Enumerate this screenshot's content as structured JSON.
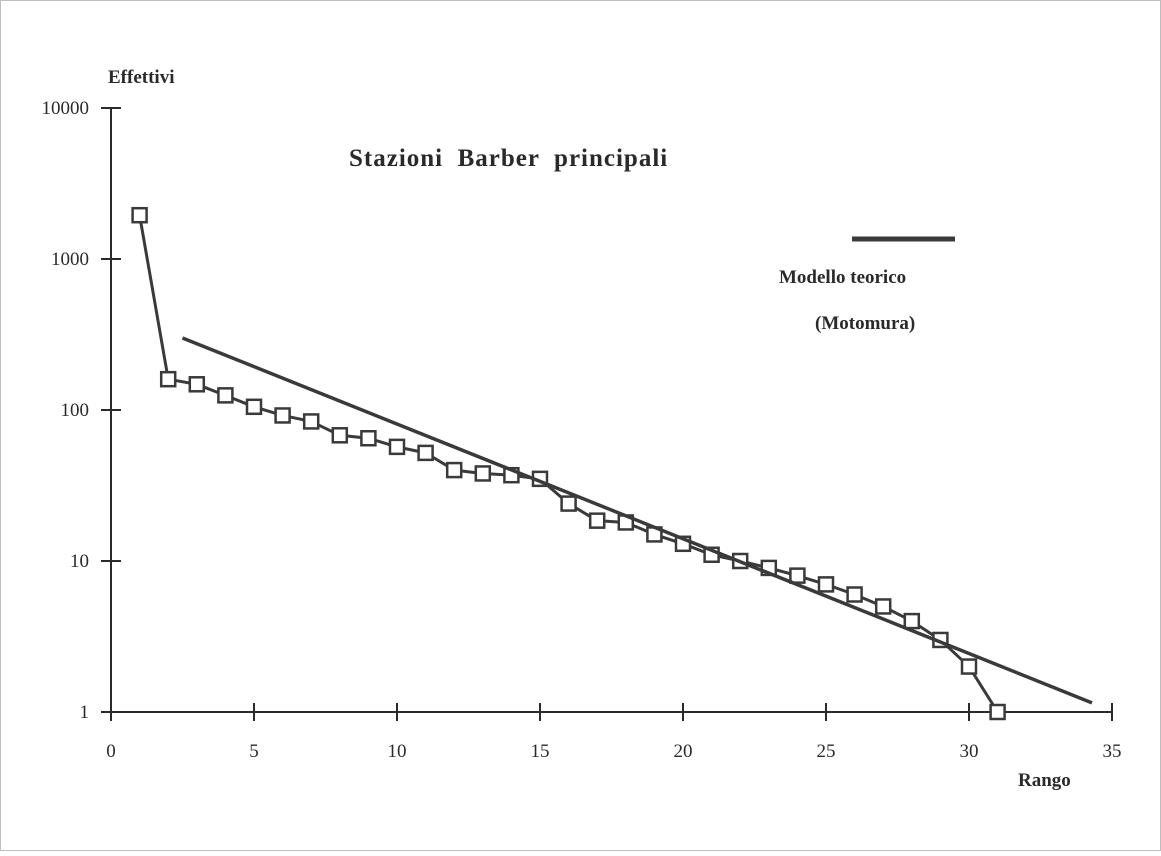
{
  "chart_data": {
    "type": "line",
    "title": "Stazioni  Barber  principali",
    "xlabel": "Rango",
    "ylabel": "Effettivi",
    "xlim": [
      0,
      35
    ],
    "ylim": [
      1,
      10000
    ],
    "yscale": "log",
    "x_ticks": [
      0,
      5,
      10,
      15,
      20,
      25,
      30,
      35
    ],
    "x_tick_labels": [
      "0",
      "5",
      "10",
      "15",
      "20",
      "25",
      "30",
      "35"
    ],
    "y_ticks": [
      1,
      10,
      100,
      1000,
      10000
    ],
    "y_tick_labels": [
      "1",
      "10",
      "100",
      "1000",
      "10000"
    ],
    "grid": false,
    "legend": {
      "placement": "top-right",
      "label_line1": "Modello teorico",
      "label_line2": "(Motomura)",
      "color": "#3a3a3a"
    },
    "series": [
      {
        "marker": "square-open",
        "color": "#3a3a3a",
        "x": [
          1,
          2,
          3,
          4,
          5,
          6,
          7,
          8,
          9,
          10,
          11,
          12,
          13,
          14,
          15,
          16,
          17,
          18,
          19,
          20,
          21,
          22,
          23,
          24,
          25,
          26,
          27,
          28,
          29,
          30,
          31
        ],
        "y": [
          1950,
          160,
          148,
          125,
          105,
          92,
          84,
          68,
          65,
          57,
          52,
          40,
          38,
          37,
          35,
          24,
          18.5,
          18,
          15,
          13,
          11,
          10,
          9,
          8,
          7,
          6,
          5,
          4,
          3,
          2,
          1
        ]
      },
      {
        "name": "Modello teorico (Motomura)",
        "marker": "none",
        "color": "#3a3a3a",
        "x": [
          2.5,
          34.3
        ],
        "y": [
          300,
          1.15
        ]
      }
    ]
  }
}
